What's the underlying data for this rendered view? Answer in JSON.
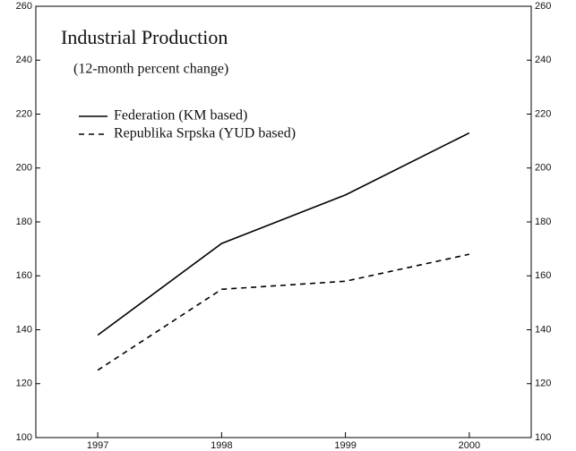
{
  "chart_data": {
    "type": "line",
    "title": "Industrial Production",
    "subtitle": "(12-month percent change)",
    "categories": [
      "1997",
      "1998",
      "1999",
      "2000"
    ],
    "series": [
      {
        "name": "Federation (KM based)",
        "color": "#000000",
        "line_style": "solid",
        "values": [
          138,
          172,
          190,
          213
        ]
      },
      {
        "name": "Republika Srpska (YUD based)",
        "color": "#000000",
        "line_style": "dashed",
        "values": [
          125,
          155,
          158,
          168
        ]
      }
    ],
    "ylim": [
      100,
      260
    ],
    "yticks": [
      100,
      120,
      140,
      160,
      180,
      200,
      220,
      240,
      260
    ],
    "grid": false
  }
}
